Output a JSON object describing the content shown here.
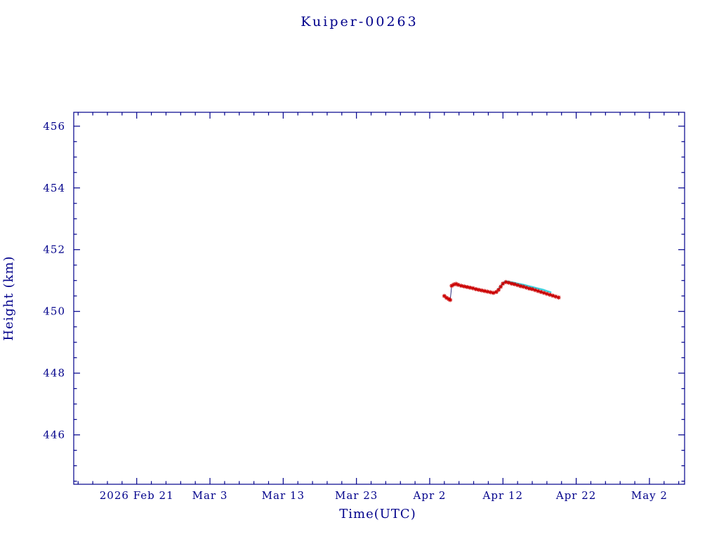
{
  "chart_data": {
    "type": "line",
    "title": "Kuiper-00263",
    "xlabel": "Time(UTC)",
    "ylabel": "Height (km)",
    "axis_color": "#00008b",
    "background_color": "#ffffff",
    "xlim": [
      -8.6,
      74.8
    ],
    "ylim": [
      444.4,
      456.45
    ],
    "grid": false,
    "legend": "none",
    "x_tick_labels": [
      "2026 Feb 21",
      "Mar 3",
      "Mar 13",
      "Mar 23",
      "Apr 2",
      "Apr 12",
      "Apr 22",
      "May 2"
    ],
    "x_tick_positions": [
      0,
      10,
      20,
      30,
      40,
      50,
      60,
      70
    ],
    "x_minor_step": 2,
    "y_ticks": [
      446,
      448,
      450,
      452,
      454,
      456
    ],
    "y_minor_step": 0.5,
    "x_axis_note": "x units are days since 2026 Feb 21",
    "series": [
      {
        "name": "predicted-height",
        "style": "line",
        "color": "#3fd4e0",
        "line_width": 2.6,
        "points": [
          [
            49.4,
            450.72
          ],
          [
            49.8,
            450.85
          ],
          [
            50.2,
            450.95
          ],
          [
            50.6,
            450.97
          ],
          [
            51.0,
            450.95
          ],
          [
            51.5,
            450.93
          ],
          [
            52.0,
            450.9
          ],
          [
            52.5,
            450.88
          ],
          [
            53.0,
            450.85
          ],
          [
            53.5,
            450.82
          ],
          [
            54.0,
            450.79
          ],
          [
            54.5,
            450.76
          ],
          [
            55.0,
            450.73
          ],
          [
            55.5,
            450.7
          ],
          [
            56.0,
            450.66
          ],
          [
            56.5,
            450.62
          ]
        ]
      },
      {
        "name": "observed-height",
        "style": "line+asterisk",
        "color": "#cc0000",
        "line_color": "#1a1a70",
        "line_width": 0.9,
        "points": [
          [
            42.0,
            450.5
          ],
          [
            42.3,
            450.44
          ],
          [
            42.6,
            450.4
          ],
          [
            42.8,
            450.37
          ],
          [
            43.0,
            450.83
          ],
          [
            43.3,
            450.87
          ],
          [
            43.6,
            450.89
          ],
          [
            43.9,
            450.86
          ],
          [
            44.3,
            450.83
          ],
          [
            44.7,
            450.81
          ],
          [
            45.1,
            450.79
          ],
          [
            45.5,
            450.77
          ],
          [
            45.9,
            450.75
          ],
          [
            46.3,
            450.72
          ],
          [
            46.7,
            450.7
          ],
          [
            47.1,
            450.68
          ],
          [
            47.5,
            450.66
          ],
          [
            47.9,
            450.64
          ],
          [
            48.3,
            450.62
          ],
          [
            48.7,
            450.6
          ],
          [
            49.1,
            450.63
          ],
          [
            49.4,
            450.7
          ],
          [
            49.7,
            450.8
          ],
          [
            50.0,
            450.9
          ],
          [
            50.4,
            450.95
          ],
          [
            50.8,
            450.93
          ],
          [
            51.2,
            450.9
          ],
          [
            51.6,
            450.88
          ],
          [
            52.0,
            450.85
          ],
          [
            52.4,
            450.82
          ],
          [
            52.8,
            450.8
          ],
          [
            53.2,
            450.77
          ],
          [
            53.6,
            450.74
          ],
          [
            54.0,
            450.72
          ],
          [
            54.4,
            450.69
          ],
          [
            54.8,
            450.66
          ],
          [
            55.2,
            450.63
          ],
          [
            55.6,
            450.6
          ],
          [
            56.0,
            450.57
          ],
          [
            56.4,
            450.54
          ],
          [
            56.8,
            450.51
          ],
          [
            57.2,
            450.48
          ],
          [
            57.6,
            450.45
          ]
        ]
      }
    ]
  }
}
